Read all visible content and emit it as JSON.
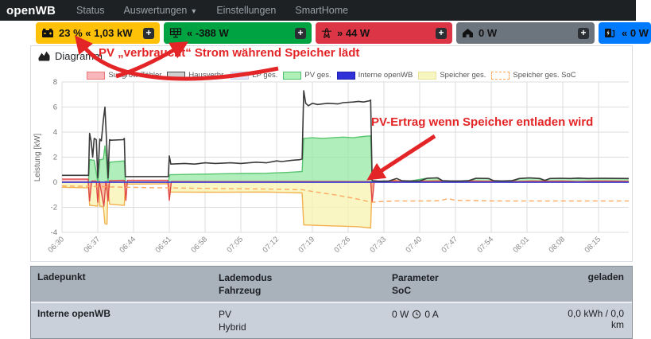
{
  "navbar": {
    "brand": "openWB",
    "items": [
      {
        "label": "Status",
        "has_dropdown": false
      },
      {
        "label": "Auswertungen",
        "has_dropdown": true
      },
      {
        "label": "Einstellungen",
        "has_dropdown": false
      },
      {
        "label": "SmartHome",
        "has_dropdown": false
      }
    ]
  },
  "badges": [
    {
      "id": "speicher",
      "icon": "car-battery-icon",
      "label": "23 % « 1,03 kW",
      "bg": "#ffc107",
      "plus_label": "+"
    },
    {
      "id": "pv",
      "icon": "solar-panel-icon",
      "label": "« -388 W",
      "bg": "#00a341",
      "plus_label": "+"
    },
    {
      "id": "evu",
      "icon": "power-tower-icon",
      "label": "» 44 W",
      "bg": "#dc3545",
      "plus_label": "+"
    },
    {
      "id": "hausverbrauch",
      "icon": "house-icon",
      "label": "0 W",
      "bg": "#6c757d",
      "plus_label": "+"
    },
    {
      "id": "ladepunkt",
      "icon": "charging-station-icon",
      "label": "« 0 W",
      "bg": "#007bff",
      "plus_label": null
    }
  ],
  "diagram": {
    "title": "Diagramm"
  },
  "annotations": {
    "note1": "PV „verbraucht“ Strom während Speicher lädt",
    "note2": "PV-Ertrag wenn Speicher entladen wird",
    "arrow_color": "#e42527"
  },
  "chart_data": {
    "type": "area",
    "ylabel": "Leistung [kW]",
    "ylim": [
      -4,
      8
    ],
    "yticks": [
      8,
      6,
      4,
      2,
      0,
      -2,
      -4
    ],
    "x_tick_interval_minutes": 7,
    "xticklabels": [
      "06:30",
      "06:37",
      "06:44",
      "06:51",
      "06:58",
      "07:05",
      "07:12",
      "07:19",
      "07:26",
      "07:33",
      "07:40",
      "07:47",
      "07:54",
      "08:01",
      "08:08",
      "08:15"
    ],
    "grid": true,
    "legend_position": "top",
    "series": [
      {
        "id": "sungrow",
        "label": "Sungrow Zähler",
        "kind": "area",
        "stroke": "#e04848",
        "fill": "rgba(247,135,135,0.45)",
        "dash": null,
        "legend_fill": "#f9b6bb",
        "legend_border": "#e87979",
        "points": [
          [
            0,
            0.25
          ],
          [
            5.1,
            0.25
          ],
          [
            5.4,
            -1.5
          ],
          [
            5.8,
            0.1
          ],
          [
            6.7,
            0.1
          ],
          [
            7,
            -1.6
          ],
          [
            7.3,
            0.1
          ],
          [
            8.2,
            -1.9
          ],
          [
            8.6,
            0.1
          ],
          [
            9,
            -1.5
          ],
          [
            9.3,
            0.12
          ],
          [
            12.2,
            0.15
          ],
          [
            12.5,
            -1.45
          ],
          [
            12.8,
            0.15
          ],
          [
            20.7,
            0.15
          ],
          [
            21,
            -1.45
          ],
          [
            21.4,
            0.06
          ],
          [
            30,
            0.05
          ],
          [
            40,
            0.05
          ],
          [
            47,
            0.06
          ],
          [
            60.4,
            0.05
          ],
          [
            60.7,
            -1.6
          ],
          [
            61.1,
            0.06
          ],
          [
            63,
            0.08
          ],
          [
            65,
            0.1
          ],
          [
            67,
            0.06
          ],
          [
            69,
            0.1
          ],
          [
            71,
            0.08
          ],
          [
            74,
            0.1
          ],
          [
            77,
            0.06
          ],
          [
            80,
            0.1
          ],
          [
            83,
            0.08
          ],
          [
            86,
            0.1
          ],
          [
            89,
            0.06
          ],
          [
            92,
            0.1
          ],
          [
            95,
            0.08
          ],
          [
            98,
            0.1
          ],
          [
            101,
            0.06
          ],
          [
            104,
            0.1
          ],
          [
            111,
            0.08
          ]
        ]
      },
      {
        "id": "haus",
        "label": "Hausverbr.",
        "kind": "line",
        "stroke": "#3b3b3b",
        "fill": null,
        "dash": null,
        "legend_fill": "#cfcfcf",
        "legend_border": "#4a4a4a",
        "points": [
          [
            0,
            0.55
          ],
          [
            5.2,
            0.55
          ],
          [
            5.4,
            3.9
          ],
          [
            5.7,
            3.3
          ],
          [
            6,
            2
          ],
          [
            6.3,
            3.5
          ],
          [
            6.7,
            3.4
          ],
          [
            7,
            0.35
          ],
          [
            7.4,
            3.45
          ],
          [
            7.7,
            3.3
          ],
          [
            8.1,
            5
          ],
          [
            8.4,
            6
          ],
          [
            8.7,
            3.5
          ],
          [
            9,
            0.35
          ],
          [
            9.3,
            3.4
          ],
          [
            9.6,
            3.35
          ],
          [
            12,
            3.4
          ],
          [
            12.2,
            3.5
          ],
          [
            12.4,
            0.45
          ],
          [
            20.8,
            0.45
          ],
          [
            21,
            2.1
          ],
          [
            21.3,
            1.45
          ],
          [
            24,
            1.5
          ],
          [
            26,
            1.45
          ],
          [
            28,
            1.55
          ],
          [
            30,
            1.5
          ],
          [
            33,
            1.55
          ],
          [
            35,
            1.5
          ],
          [
            38,
            1.6
          ],
          [
            40,
            1.55
          ],
          [
            42,
            1.7
          ],
          [
            43,
            1.65
          ],
          [
            45,
            1.75
          ],
          [
            46.5,
            1.8
          ],
          [
            47,
            1.85
          ],
          [
            47.3,
            7.3
          ],
          [
            47.7,
            6.3
          ],
          [
            48.2,
            6.1
          ],
          [
            49,
            6.3
          ],
          [
            50,
            6.2
          ],
          [
            52,
            6.3
          ],
          [
            54,
            6.25
          ],
          [
            55,
            6.35
          ],
          [
            57,
            6.4
          ],
          [
            58,
            6.45
          ],
          [
            59,
            6.4
          ],
          [
            60.2,
            6.5
          ],
          [
            60.4,
            6.55
          ],
          [
            60.7,
            0.12
          ],
          [
            62,
            0.08
          ],
          [
            64,
            0.1
          ],
          [
            65.5,
            0.3
          ],
          [
            66.5,
            0.12
          ],
          [
            68,
            0.1
          ],
          [
            70,
            0.1
          ],
          [
            71.5,
            0.32
          ],
          [
            73.5,
            0.35
          ],
          [
            74.5,
            0.12
          ],
          [
            76,
            0.1
          ],
          [
            78,
            0.1
          ],
          [
            79.5,
            0.12
          ],
          [
            81,
            0.32
          ],
          [
            83.5,
            0.3
          ],
          [
            84.5,
            0.12
          ],
          [
            86,
            0.1
          ],
          [
            88,
            0.12
          ],
          [
            89.5,
            0.3
          ],
          [
            91.5,
            0.35
          ],
          [
            93.5,
            0.3
          ],
          [
            94.5,
            0.15
          ],
          [
            95.5,
            0.3
          ],
          [
            97.5,
            0.32
          ],
          [
            99.5,
            0.3
          ],
          [
            101,
            0.33
          ],
          [
            103,
            0.3
          ],
          [
            105,
            0.32
          ],
          [
            111,
            0.3
          ]
        ]
      },
      {
        "id": "lp",
        "label": "LP ges.",
        "kind": "area",
        "stroke": "#c6c6ea",
        "fill": "rgba(220,220,245,0.4)",
        "dash": null,
        "legend_fill": "#e4e4f7",
        "legend_border": "#c9c9ea",
        "points": [
          [
            0,
            0
          ],
          [
            111,
            0
          ]
        ]
      },
      {
        "id": "pv",
        "label": "PV ges.",
        "kind": "area",
        "stroke": "#57c46e",
        "fill": "rgba(150,233,165,0.75)",
        "dash": null,
        "legend_fill": "#aef0b8",
        "legend_border": "#52c06a",
        "points": [
          [
            0,
            0
          ],
          [
            5.2,
            0.02
          ],
          [
            5.4,
            1.8
          ],
          [
            6.3,
            1.75
          ],
          [
            7,
            0.05
          ],
          [
            7.4,
            1.8
          ],
          [
            8.1,
            1.85
          ],
          [
            8.4,
            2.9
          ],
          [
            8.7,
            1.8
          ],
          [
            9,
            0.05
          ],
          [
            9.3,
            1.6
          ],
          [
            12.2,
            1.7
          ],
          [
            12.4,
            0.02
          ],
          [
            20.8,
            0.02
          ],
          [
            21.1,
            0.6
          ],
          [
            24,
            0.62
          ],
          [
            28,
            0.65
          ],
          [
            32,
            0.68
          ],
          [
            36,
            0.7
          ],
          [
            40,
            0.72
          ],
          [
            44,
            0.78
          ],
          [
            47,
            0.85
          ],
          [
            47.3,
            3.5
          ],
          [
            49,
            3.55
          ],
          [
            51,
            3.5
          ],
          [
            53,
            3.55
          ],
          [
            55,
            3.6
          ],
          [
            57,
            3.55
          ],
          [
            59,
            3.65
          ],
          [
            60.4,
            3.7
          ],
          [
            60.7,
            0.02
          ],
          [
            64,
            0.02
          ],
          [
            65.5,
            0.08
          ],
          [
            67,
            0.02
          ],
          [
            71,
            0.3
          ],
          [
            73.5,
            0.35
          ],
          [
            74.5,
            0.05
          ],
          [
            76,
            0.02
          ],
          [
            79.5,
            0.05
          ],
          [
            81,
            0.3
          ],
          [
            83.5,
            0.3
          ],
          [
            84.5,
            0.05
          ],
          [
            88,
            0.03
          ],
          [
            89.5,
            0.3
          ],
          [
            91.5,
            0.33
          ],
          [
            93.5,
            0.28
          ],
          [
            94.5,
            0.05
          ],
          [
            95.5,
            0.3
          ],
          [
            97.5,
            0.3
          ],
          [
            101,
            0.3
          ],
          [
            103,
            0.28
          ],
          [
            105,
            0.3
          ],
          [
            111,
            0.28
          ]
        ]
      },
      {
        "id": "interne",
        "label": "Interne openWB",
        "kind": "line",
        "stroke": "#2828cf",
        "fill": null,
        "dash": null,
        "legend_fill": "#3030d8",
        "legend_border": "#2020b0",
        "points": [
          [
            0,
            0
          ],
          [
            111,
            0
          ]
        ]
      },
      {
        "id": "speicher",
        "label": "Speicher ges.",
        "kind": "area",
        "stroke": "#f3b04f",
        "fill": "rgba(247,244,180,0.8)",
        "dash": null,
        "legend_fill": "#f7f5c0",
        "legend_border": "#e8e29a",
        "points": [
          [
            0,
            -0.4
          ],
          [
            5.2,
            -0.45
          ],
          [
            5.4,
            -1.85
          ],
          [
            7,
            -1.9
          ],
          [
            7.2,
            -0.2
          ],
          [
            7.4,
            -1.9
          ],
          [
            8.1,
            -1.95
          ],
          [
            8.4,
            -3.3
          ],
          [
            8.8,
            -3.35
          ],
          [
            9,
            -0.2
          ],
          [
            9.3,
            -1.75
          ],
          [
            12.2,
            -1.85
          ],
          [
            12.4,
            -0.15
          ],
          [
            20.8,
            -0.12
          ],
          [
            21.1,
            -0.78
          ],
          [
            30,
            -0.8
          ],
          [
            40,
            -0.78
          ],
          [
            47,
            -0.85
          ],
          [
            47.3,
            -3.4
          ],
          [
            50,
            -3.45
          ],
          [
            54,
            -3.5
          ],
          [
            58,
            -3.55
          ],
          [
            60.4,
            -3.65
          ],
          [
            60.7,
            0
          ],
          [
            63,
            0.05
          ],
          [
            65,
            0.18
          ],
          [
            66.5,
            0.05
          ],
          [
            69,
            0.05
          ],
          [
            71,
            0.12
          ],
          [
            73.5,
            0.18
          ],
          [
            74.5,
            0.04
          ],
          [
            78,
            0.04
          ],
          [
            81,
            0.1
          ],
          [
            84,
            0.1
          ],
          [
            86,
            0.04
          ],
          [
            89.5,
            0.1
          ],
          [
            92,
            0.1
          ],
          [
            94.5,
            0.04
          ],
          [
            97,
            0.08
          ],
          [
            100,
            0.06
          ],
          [
            105,
            0.05
          ],
          [
            111,
            0.05
          ]
        ]
      },
      {
        "id": "soc",
        "label": "Speicher ges. SoC",
        "kind": "line",
        "stroke": "#fbaa60",
        "fill": null,
        "dash": "6,4",
        "legend_fill": "#ffffff",
        "legend_border": "#fbaa60",
        "points": [
          [
            0,
            -0.3
          ],
          [
            8,
            -0.35
          ],
          [
            12,
            -0.4
          ],
          [
            21,
            -0.45
          ],
          [
            30,
            -0.5
          ],
          [
            42,
            -0.55
          ],
          [
            47,
            -0.6
          ],
          [
            50,
            -0.8
          ],
          [
            54,
            -1.05
          ],
          [
            58,
            -1.35
          ],
          [
            60.5,
            -1.6
          ],
          [
            62,
            -1.55
          ],
          [
            65,
            -1.5
          ],
          [
            70,
            -1.5
          ],
          [
            74,
            -1.48
          ],
          [
            75.5,
            -1.3
          ],
          [
            77,
            -1.45
          ],
          [
            85,
            -1.5
          ],
          [
            95,
            -1.5
          ],
          [
            105,
            -1.5
          ],
          [
            111,
            -1.5
          ]
        ]
      }
    ]
  },
  "table": {
    "headers": {
      "col1": "Ladepunkt",
      "col2a": "Lademodus",
      "col2b": "Fahrzeug",
      "col3a": "Parameter",
      "col3b": "SoC",
      "col4": "geladen"
    },
    "rows": [
      {
        "name": "Interne openWB",
        "mode": "PV",
        "vehicle": "Hybrid",
        "power": "0 W",
        "current": "0 A",
        "charged": "0,0 kWh / 0,0 km"
      }
    ]
  }
}
